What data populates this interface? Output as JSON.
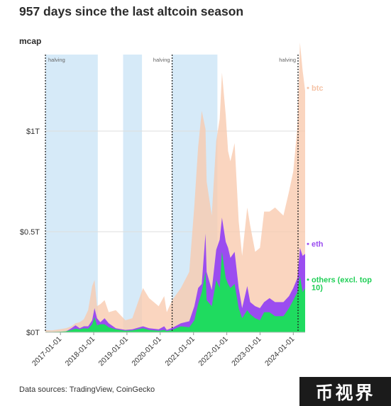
{
  "title": "957 days since the last altcoin season",
  "y_axis_label": "mcap",
  "source": "Data sources: TradingView, CoinGecko",
  "watermark": "币视界",
  "colors": {
    "btc": "#f9c9ad",
    "eth": "#9b4df0",
    "others": "#1fdb5f",
    "shade": "#d6eaf8",
    "btc_label": "#f5c3a6",
    "eth_label": "#9b4df0",
    "others_label": "#1fcf56",
    "grid": "#dddddd",
    "text": "#333333"
  },
  "chart_data": {
    "type": "area",
    "stacked": true,
    "x_type": "date",
    "xlim": [
      "2016-07-20",
      "2024-05-10"
    ],
    "ylim": [
      0,
      1.38
    ],
    "y_unit": "trillion USD",
    "yticks": [
      {
        "value": 0,
        "label": "$0T"
      },
      {
        "value": 0.5,
        "label": "$0.5T"
      },
      {
        "value": 1,
        "label": "$1T"
      }
    ],
    "xticks": [
      "2017-01-01",
      "2018-01-01",
      "2019-01-01",
      "2020-01-01",
      "2021-01-01",
      "2022-01-01",
      "2023-01-01",
      "2024-01-01"
    ],
    "grid": true,
    "shaded_periods": [
      {
        "start": "2016-07-20",
        "end": "2018-02-15"
      },
      {
        "start": "2018-11-20",
        "end": "2019-06-15"
      },
      {
        "start": "2020-05-11",
        "end": "2021-09-20"
      }
    ],
    "vertical_lines": [
      {
        "date": "2016-07-10",
        "label": "halving"
      },
      {
        "date": "2020-05-11",
        "label": "halving"
      },
      {
        "date": "2024-04-20",
        "label": "halving"
      }
    ],
    "series": [
      {
        "name": "others (excl. top 10)",
        "key": "others",
        "points": [
          [
            "2016-07-20",
            0.002
          ],
          [
            "2016-10-01",
            0.002
          ],
          [
            "2017-01-01",
            0.003
          ],
          [
            "2017-03-01",
            0.005
          ],
          [
            "2017-05-01",
            0.012
          ],
          [
            "2017-06-15",
            0.018
          ],
          [
            "2017-08-01",
            0.015
          ],
          [
            "2017-09-15",
            0.02
          ],
          [
            "2017-11-01",
            0.018
          ],
          [
            "2017-12-15",
            0.04
          ],
          [
            "2018-01-10",
            0.075
          ],
          [
            "2018-02-06",
            0.035
          ],
          [
            "2018-03-15",
            0.04
          ],
          [
            "2018-05-01",
            0.04
          ],
          [
            "2018-06-15",
            0.025
          ],
          [
            "2018-09-01",
            0.015
          ],
          [
            "2018-12-15",
            0.008
          ],
          [
            "2019-03-01",
            0.01
          ],
          [
            "2019-06-26",
            0.02
          ],
          [
            "2019-09-01",
            0.012
          ],
          [
            "2019-12-15",
            0.008
          ],
          [
            "2020-02-14",
            0.012
          ],
          [
            "2020-03-13",
            0.006
          ],
          [
            "2020-05-11",
            0.012
          ],
          [
            "2020-08-15",
            0.03
          ],
          [
            "2020-11-15",
            0.025
          ],
          [
            "2021-01-10",
            0.06
          ],
          [
            "2021-02-20",
            0.14
          ],
          [
            "2021-04-01",
            0.2
          ],
          [
            "2021-05-12",
            0.3
          ],
          [
            "2021-05-25",
            0.16
          ],
          [
            "2021-07-20",
            0.13
          ],
          [
            "2021-09-07",
            0.26
          ],
          [
            "2021-10-15",
            0.22
          ],
          [
            "2021-11-09",
            0.4
          ],
          [
            "2021-12-20",
            0.27
          ],
          [
            "2022-01-15",
            0.24
          ],
          [
            "2022-02-10",
            0.22
          ],
          [
            "2022-03-28",
            0.24
          ],
          [
            "2022-05-12",
            0.12
          ],
          [
            "2022-06-18",
            0.07
          ],
          [
            "2022-08-13",
            0.11
          ],
          [
            "2022-09-15",
            0.09
          ],
          [
            "2022-11-09",
            0.07
          ],
          [
            "2022-12-31",
            0.06
          ],
          [
            "2023-02-15",
            0.1
          ],
          [
            "2023-04-15",
            0.1
          ],
          [
            "2023-06-15",
            0.08
          ],
          [
            "2023-09-15",
            0.08
          ],
          [
            "2023-11-15",
            0.12
          ],
          [
            "2024-01-01",
            0.16
          ],
          [
            "2024-02-15",
            0.2
          ],
          [
            "2024-03-14",
            0.28
          ],
          [
            "2024-04-13",
            0.2
          ],
          [
            "2024-05-10",
            0.22
          ]
        ]
      },
      {
        "name": "eth",
        "key": "eth",
        "points": [
          [
            "2016-07-20",
            0.001
          ],
          [
            "2016-10-01",
            0.001
          ],
          [
            "2017-01-01",
            0.001
          ],
          [
            "2017-03-01",
            0.004
          ],
          [
            "2017-05-01",
            0.02
          ],
          [
            "2017-06-15",
            0.035
          ],
          [
            "2017-08-01",
            0.02
          ],
          [
            "2017-09-15",
            0.03
          ],
          [
            "2017-11-01",
            0.03
          ],
          [
            "2017-12-15",
            0.06
          ],
          [
            "2018-01-10",
            0.12
          ],
          [
            "2018-02-06",
            0.07
          ],
          [
            "2018-03-15",
            0.05
          ],
          [
            "2018-05-01",
            0.07
          ],
          [
            "2018-06-15",
            0.045
          ],
          [
            "2018-09-01",
            0.02
          ],
          [
            "2018-12-15",
            0.012
          ],
          [
            "2019-03-01",
            0.015
          ],
          [
            "2019-06-26",
            0.03
          ],
          [
            "2019-09-01",
            0.02
          ],
          [
            "2019-12-15",
            0.015
          ],
          [
            "2020-02-14",
            0.03
          ],
          [
            "2020-03-13",
            0.012
          ],
          [
            "2020-05-11",
            0.022
          ],
          [
            "2020-08-15",
            0.045
          ],
          [
            "2020-11-15",
            0.055
          ],
          [
            "2021-01-10",
            0.13
          ],
          [
            "2021-02-20",
            0.22
          ],
          [
            "2021-04-01",
            0.24
          ],
          [
            "2021-05-12",
            0.49
          ],
          [
            "2021-05-25",
            0.3
          ],
          [
            "2021-07-20",
            0.21
          ],
          [
            "2021-09-07",
            0.41
          ],
          [
            "2021-10-15",
            0.46
          ],
          [
            "2021-11-09",
            0.57
          ],
          [
            "2021-12-20",
            0.45
          ],
          [
            "2022-01-15",
            0.42
          ],
          [
            "2022-02-10",
            0.37
          ],
          [
            "2022-03-28",
            0.4
          ],
          [
            "2022-05-12",
            0.22
          ],
          [
            "2022-06-18",
            0.12
          ],
          [
            "2022-08-13",
            0.23
          ],
          [
            "2022-09-15",
            0.15
          ],
          [
            "2022-11-09",
            0.13
          ],
          [
            "2022-12-31",
            0.12
          ],
          [
            "2023-02-15",
            0.15
          ],
          [
            "2023-04-15",
            0.17
          ],
          [
            "2023-06-15",
            0.15
          ],
          [
            "2023-09-15",
            0.15
          ],
          [
            "2023-11-15",
            0.18
          ],
          [
            "2024-01-01",
            0.22
          ],
          [
            "2024-02-15",
            0.27
          ],
          [
            "2024-03-14",
            0.42
          ],
          [
            "2024-04-13",
            0.38
          ],
          [
            "2024-05-10",
            0.39
          ]
        ]
      },
      {
        "name": "btc",
        "key": "btc",
        "points": [
          [
            "2016-07-20",
            0.011
          ],
          [
            "2016-10-01",
            0.01
          ],
          [
            "2017-01-01",
            0.016
          ],
          [
            "2017-03-01",
            0.02
          ],
          [
            "2017-05-01",
            0.03
          ],
          [
            "2017-06-15",
            0.045
          ],
          [
            "2017-08-01",
            0.05
          ],
          [
            "2017-09-15",
            0.065
          ],
          [
            "2017-11-01",
            0.11
          ],
          [
            "2017-12-15",
            0.23
          ],
          [
            "2018-01-10",
            0.26
          ],
          [
            "2018-02-06",
            0.13
          ],
          [
            "2018-03-15",
            0.14
          ],
          [
            "2018-05-01",
            0.16
          ],
          [
            "2018-06-15",
            0.1
          ],
          [
            "2018-09-01",
            0.11
          ],
          [
            "2018-12-15",
            0.06
          ],
          [
            "2019-03-01",
            0.07
          ],
          [
            "2019-06-26",
            0.22
          ],
          [
            "2019-09-01",
            0.17
          ],
          [
            "2019-12-15",
            0.13
          ],
          [
            "2020-02-14",
            0.18
          ],
          [
            "2020-03-13",
            0.1
          ],
          [
            "2020-05-11",
            0.16
          ],
          [
            "2020-08-15",
            0.22
          ],
          [
            "2020-11-15",
            0.3
          ],
          [
            "2021-01-10",
            0.63
          ],
          [
            "2021-02-20",
            0.92
          ],
          [
            "2021-04-01",
            1.1
          ],
          [
            "2021-05-12",
            1.01
          ],
          [
            "2021-05-25",
            0.75
          ],
          [
            "2021-07-20",
            0.58
          ],
          [
            "2021-09-07",
            0.95
          ],
          [
            "2021-10-15",
            1.06
          ],
          [
            "2021-11-09",
            1.29
          ],
          [
            "2021-12-20",
            1.08
          ],
          [
            "2022-01-15",
            0.9
          ],
          [
            "2022-02-10",
            0.85
          ],
          [
            "2022-03-28",
            0.94
          ],
          [
            "2022-05-12",
            0.55
          ],
          [
            "2022-06-18",
            0.38
          ],
          [
            "2022-08-13",
            0.62
          ],
          [
            "2022-09-15",
            0.53
          ],
          [
            "2022-11-09",
            0.4
          ],
          [
            "2022-12-31",
            0.42
          ],
          [
            "2023-02-15",
            0.6
          ],
          [
            "2023-04-15",
            0.6
          ],
          [
            "2023-06-15",
            0.62
          ],
          [
            "2023-09-15",
            0.58
          ],
          [
            "2023-11-15",
            0.7
          ],
          [
            "2024-01-01",
            0.8
          ],
          [
            "2024-02-15",
            1.02
          ],
          [
            "2024-03-14",
            1.44
          ],
          [
            "2024-04-13",
            1.3
          ],
          [
            "2024-05-10",
            1.2
          ]
        ]
      }
    ],
    "legend": [
      {
        "key": "btc",
        "text": "btc"
      },
      {
        "key": "eth",
        "text": "eth"
      },
      {
        "key": "others",
        "text": "others (excl. top 10)"
      }
    ]
  }
}
